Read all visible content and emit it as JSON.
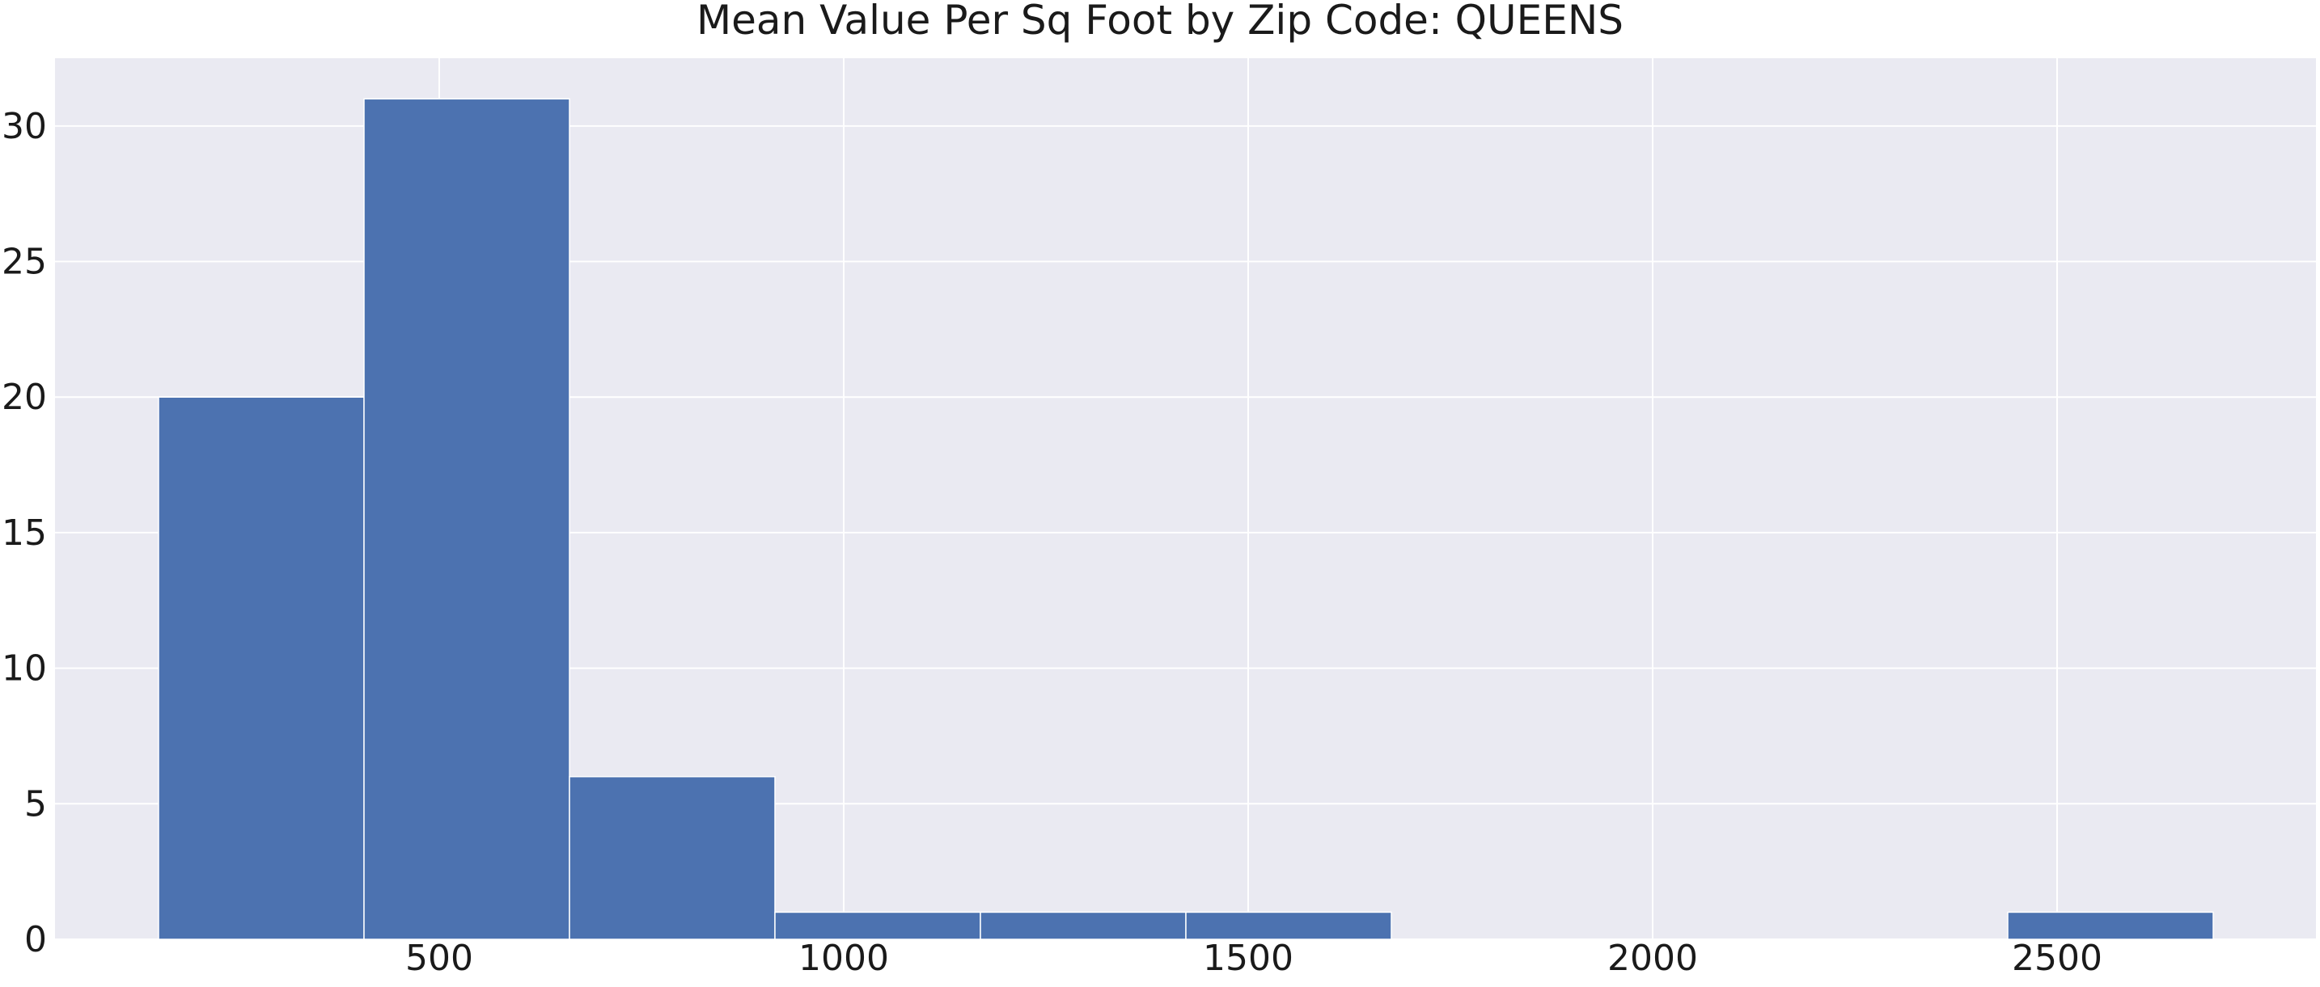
{
  "chart_data": {
    "type": "bar",
    "title": "Mean Value Per Sq Foot by Zip Code: QUEENS",
    "xlabel": "",
    "ylabel": "",
    "bins": [
      {
        "start": 153,
        "end": 407,
        "count": 20
      },
      {
        "start": 407,
        "end": 661,
        "count": 31
      },
      {
        "start": 661,
        "end": 915,
        "count": 6
      },
      {
        "start": 915,
        "end": 1169,
        "count": 1
      },
      {
        "start": 1169,
        "end": 1423,
        "count": 1
      },
      {
        "start": 1423,
        "end": 1677,
        "count": 1
      },
      {
        "start": 1677,
        "end": 1931,
        "count": 0
      },
      {
        "start": 1931,
        "end": 2185,
        "count": 0
      },
      {
        "start": 2185,
        "end": 2439,
        "count": 0
      },
      {
        "start": 2439,
        "end": 2693,
        "count": 1
      }
    ],
    "xlim": [
      25,
      2820
    ],
    "ylim": [
      0,
      32.5
    ],
    "x_ticks": [
      500,
      1000,
      1500,
      2000,
      2500
    ],
    "y_ticks": [
      0,
      5,
      10,
      15,
      20,
      25,
      30
    ],
    "grid": true,
    "colors": {
      "bar": "#4c72b0",
      "plot_background": "#eaeaf2",
      "grid": "#ffffff"
    }
  }
}
